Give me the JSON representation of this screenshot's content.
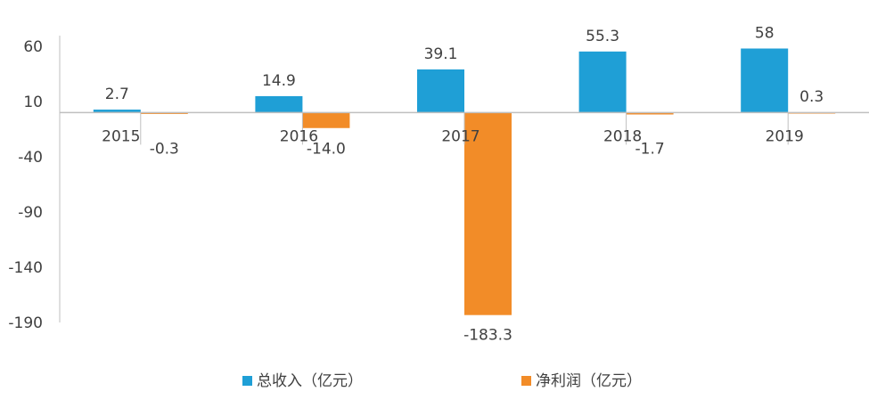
{
  "chart_data": {
    "type": "bar",
    "categories": [
      "2015",
      "2016",
      "2017",
      "2018",
      "2019"
    ],
    "series": [
      {
        "name": "总收入（亿元）",
        "values": [
          2.7,
          14.9,
          39.1,
          55.3,
          58
        ],
        "labels": [
          "2.7",
          "14.9",
          "39.1",
          "55.3",
          "58"
        ],
        "color": "#1f9fd6"
      },
      {
        "name": "净利润（亿元）",
        "values": [
          -0.3,
          -14.0,
          -183.3,
          -1.7,
          0.3
        ],
        "labels": [
          "-0.3",
          "-14.0",
          "-183.3",
          "-1.7",
          "0.3"
        ],
        "color": "#f28c28"
      }
    ],
    "ylim": [
      -190,
      60
    ],
    "yticks": [
      "60",
      "10",
      "-40",
      "-90",
      "-140",
      "-190"
    ],
    "title": "",
    "xlabel": "",
    "ylabel": "",
    "grid": false,
    "legend": "bottom"
  }
}
